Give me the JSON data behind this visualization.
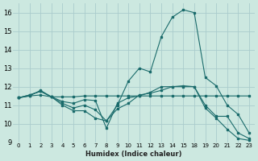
{
  "xlabel": "Humidex (Indice chaleur)",
  "bg_color": "#cce8e0",
  "grid_color": "#aacccc",
  "line_color": "#1a6b6b",
  "series": [
    {
      "x": [
        0,
        1,
        2,
        3,
        4,
        5,
        6,
        7,
        8,
        9,
        10,
        11,
        12,
        13,
        14,
        15,
        18,
        19,
        20,
        21,
        22,
        23
      ],
      "y": [
        11.4,
        11.5,
        11.55,
        11.45,
        11.45,
        11.45,
        11.5,
        11.5,
        11.5,
        11.5,
        11.5,
        11.5,
        11.5,
        11.5,
        11.5,
        11.5,
        11.5,
        11.5,
        11.5,
        11.5,
        11.5,
        11.5
      ]
    },
    {
      "x": [
        0,
        1,
        2,
        3,
        4,
        5,
        6,
        7,
        8,
        9,
        10,
        11,
        12,
        13,
        14,
        15,
        18,
        19,
        20,
        21,
        22,
        23
      ],
      "y": [
        11.4,
        11.5,
        11.8,
        11.45,
        11.2,
        11.1,
        11.3,
        11.25,
        9.75,
        11.1,
        11.4,
        11.5,
        11.7,
        12.0,
        12.0,
        12.0,
        12.0,
        11.0,
        10.4,
        10.4,
        9.5,
        9.2
      ]
    },
    {
      "x": [
        0,
        1,
        2,
        3,
        4,
        5,
        6,
        7,
        8,
        9,
        10,
        11,
        12,
        13,
        14,
        15,
        18,
        19,
        20,
        21,
        22,
        23
      ],
      "y": [
        11.4,
        11.55,
        11.75,
        11.45,
        11.0,
        10.7,
        10.7,
        10.3,
        10.15,
        10.8,
        11.1,
        11.55,
        11.65,
        11.8,
        12.0,
        12.05,
        12.0,
        10.85,
        10.3,
        9.7,
        9.2,
        9.1
      ]
    },
    {
      "x": [
        0,
        1,
        2,
        3,
        4,
        5,
        6,
        7,
        8,
        9,
        10,
        11,
        12,
        13,
        14,
        15,
        18,
        19,
        20,
        21,
        22,
        23
      ],
      "y": [
        11.4,
        11.55,
        11.75,
        11.45,
        11.1,
        10.85,
        11.0,
        10.75,
        10.15,
        11.0,
        12.3,
        13.0,
        12.8,
        14.7,
        15.75,
        16.15,
        16.0,
        12.5,
        12.05,
        11.0,
        10.5,
        9.5
      ]
    }
  ],
  "all_x": [
    0,
    1,
    2,
    3,
    4,
    5,
    6,
    7,
    8,
    9,
    10,
    11,
    12,
    13,
    14,
    15,
    18,
    19,
    20,
    21,
    22,
    23
  ],
  "xlim_idx": [
    -0.5,
    21.5
  ],
  "ylim": [
    9,
    16.5
  ],
  "yticks": [
    9,
    10,
    11,
    12,
    13,
    14,
    15,
    16
  ],
  "xtick_labels": [
    "0",
    "1",
    "2",
    "3",
    "4",
    "5",
    "6",
    "7",
    "8",
    "9",
    "10",
    "11",
    "12",
    "13",
    "14",
    "15",
    "18",
    "19",
    "20",
    "21",
    "22",
    "23"
  ]
}
